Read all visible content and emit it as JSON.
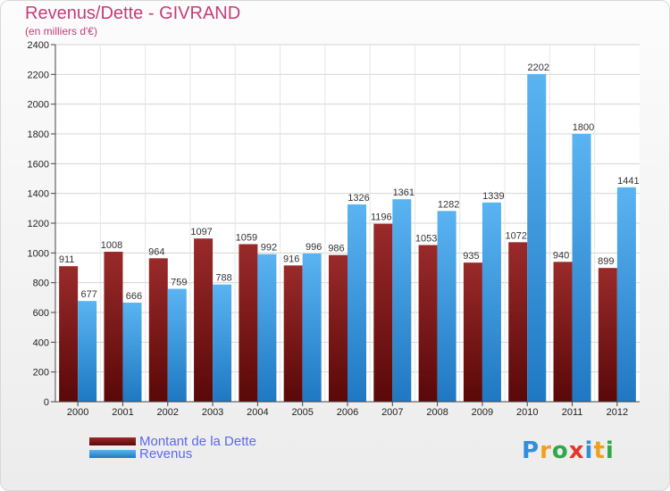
{
  "chart_data": {
    "type": "bar",
    "title": "Revenus/Dette - GIVRAND",
    "subtitle": "(en milliers d'€)",
    "categories": [
      "2000",
      "2001",
      "2002",
      "2003",
      "2004",
      "2005",
      "2006",
      "2007",
      "2008",
      "2009",
      "2010",
      "2011",
      "2012"
    ],
    "series": [
      {
        "name": "Montant de la Dette",
        "color": "#8a1f1f",
        "values": [
          911,
          1008,
          964,
          1097,
          1059,
          916,
          986,
          1196,
          1053,
          935,
          1072,
          940,
          899
        ]
      },
      {
        "name": "Revenus",
        "color": "#3a9be0",
        "values": [
          677,
          666,
          759,
          788,
          992,
          996,
          1326,
          1361,
          1282,
          1339,
          2202,
          1800,
          1441
        ]
      }
    ],
    "ylim": [
      0,
      2400
    ],
    "yticks": [
      0,
      200,
      400,
      600,
      800,
      1000,
      1200,
      1400,
      1600,
      1800,
      2000,
      2200,
      2400
    ],
    "grid": true,
    "legend_position": "bottom-left"
  },
  "logo": {
    "letters": [
      "P",
      "r",
      "o",
      "x",
      "i",
      "t",
      "i"
    ],
    "colors": [
      "#2f8fdc",
      "#f0a020",
      "#2fa84a",
      "#e8352a",
      "#2f8fdc",
      "#f0a020",
      "#2fa84a"
    ]
  }
}
